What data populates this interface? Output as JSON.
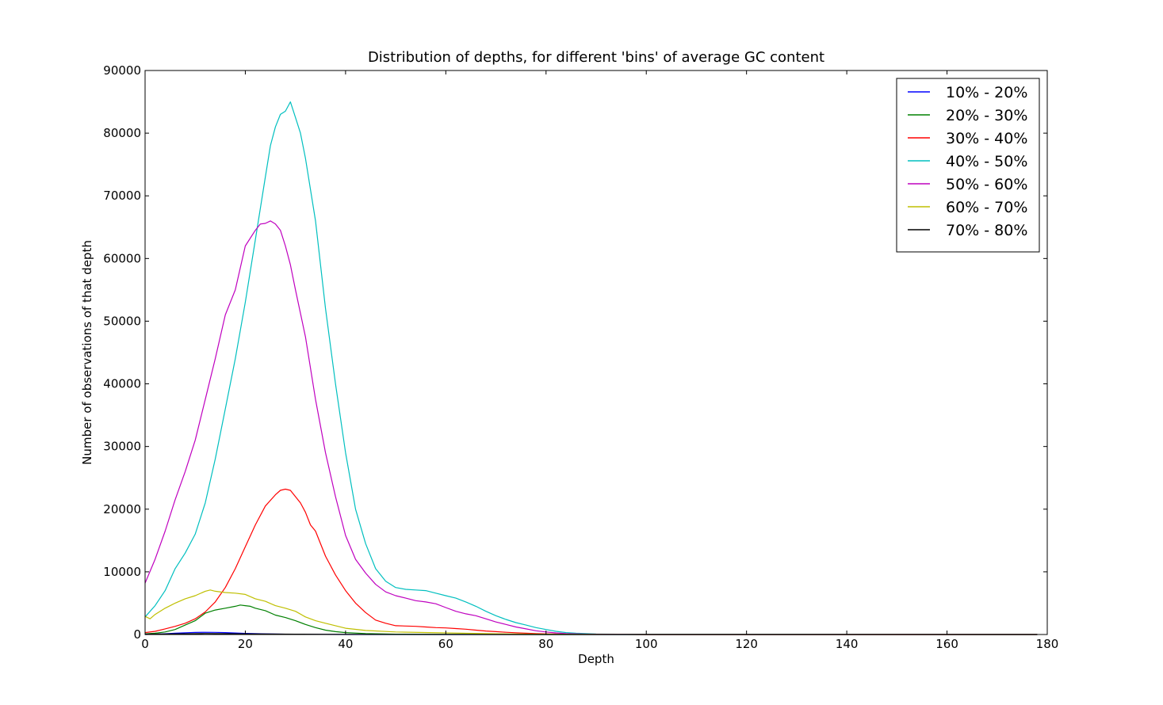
{
  "chart_data": {
    "type": "line",
    "title": "Distribution of depths, for different 'bins' of average GC content",
    "xlabel": "Depth",
    "ylabel": "Number of observations of that depth",
    "xlim": [
      0,
      180
    ],
    "ylim": [
      0,
      90000
    ],
    "xticks": [
      "0",
      "20",
      "40",
      "60",
      "80",
      "100",
      "120",
      "140",
      "160",
      "180"
    ],
    "yticks": [
      "0",
      "10000",
      "20000",
      "30000",
      "40000",
      "50000",
      "60000",
      "70000",
      "80000",
      "90000"
    ],
    "grid": false,
    "legend": "top-right",
    "series": [
      {
        "name": "10% - 20%",
        "color": "#0000ff",
        "x": [
          0,
          2,
          4,
          6,
          8,
          10,
          12,
          14,
          16,
          18,
          20,
          24,
          28,
          32,
          40,
          60,
          100,
          178
        ],
        "y": [
          0,
          50,
          120,
          200,
          280,
          330,
          360,
          340,
          300,
          240,
          180,
          100,
          50,
          20,
          0,
          0,
          0,
          0
        ]
      },
      {
        "name": "20% - 30%",
        "color": "#008000",
        "x": [
          0,
          2,
          4,
          6,
          8,
          10,
          12,
          14,
          16,
          18,
          19,
          20,
          21,
          22,
          24,
          26,
          28,
          30,
          32,
          34,
          36,
          38,
          40,
          44,
          50,
          60,
          80,
          100,
          178
        ],
        "y": [
          100,
          200,
          400,
          800,
          1500,
          2200,
          3400,
          3900,
          4200,
          4500,
          4700,
          4600,
          4500,
          4200,
          3800,
          3100,
          2700,
          2200,
          1600,
          1100,
          700,
          450,
          300,
          150,
          50,
          20,
          0,
          0,
          0
        ]
      },
      {
        "name": "30% - 40%",
        "color": "#ff0000",
        "x": [
          0,
          2,
          4,
          6,
          8,
          10,
          12,
          14,
          16,
          18,
          20,
          22,
          24,
          26,
          27,
          28,
          29,
          30,
          31,
          32,
          33,
          34,
          36,
          38,
          40,
          42,
          44,
          46,
          48,
          50,
          52,
          54,
          56,
          58,
          60,
          62,
          64,
          66,
          68,
          70,
          72,
          74,
          76,
          78,
          80,
          85,
          90,
          100,
          178
        ],
        "y": [
          300,
          500,
          900,
          1300,
          1800,
          2500,
          3600,
          5200,
          7500,
          10500,
          14000,
          17500,
          20500,
          22300,
          23000,
          23200,
          23000,
          22000,
          21000,
          19500,
          17500,
          16500,
          12500,
          9500,
          7000,
          5000,
          3500,
          2300,
          1800,
          1400,
          1350,
          1300,
          1200,
          1100,
          1050,
          950,
          850,
          700,
          550,
          450,
          350,
          280,
          200,
          150,
          100,
          50,
          20,
          0,
          0
        ]
      },
      {
        "name": "40% - 50%",
        "color": "#00bfbf",
        "x": [
          0,
          2,
          4,
          6,
          8,
          10,
          12,
          14,
          16,
          18,
          20,
          22,
          24,
          25,
          26,
          27,
          28,
          29,
          30,
          31,
          32,
          34,
          36,
          38,
          40,
          42,
          44,
          46,
          48,
          50,
          52,
          54,
          56,
          58,
          60,
          62,
          64,
          66,
          68,
          70,
          72,
          74,
          76,
          78,
          80,
          82,
          84,
          86,
          90,
          100,
          178
        ],
        "y": [
          2800,
          4600,
          7000,
          10500,
          13000,
          16000,
          21000,
          28000,
          36000,
          44000,
          53000,
          63000,
          73000,
          78000,
          81000,
          83000,
          83500,
          85000,
          82500,
          80000,
          76000,
          66000,
          52000,
          40000,
          29000,
          20000,
          14500,
          10500,
          8500,
          7500,
          7200,
          7100,
          7000,
          6600,
          6200,
          5800,
          5200,
          4500,
          3700,
          3000,
          2400,
          1900,
          1500,
          1100,
          800,
          500,
          300,
          200,
          80,
          20,
          0
        ]
      },
      {
        "name": "50% - 60%",
        "color": "#bf00bf",
        "x": [
          0,
          2,
          4,
          6,
          8,
          10,
          12,
          14,
          16,
          18,
          20,
          22,
          23,
          24,
          25,
          26,
          27,
          28,
          29,
          30,
          32,
          34,
          36,
          38,
          40,
          42,
          44,
          46,
          48,
          50,
          52,
          54,
          56,
          58,
          60,
          62,
          64,
          66,
          68,
          70,
          72,
          74,
          76,
          78,
          80,
          82,
          84,
          88,
          100,
          178
        ],
        "y": [
          8200,
          12000,
          16500,
          21500,
          26000,
          31000,
          37500,
          44000,
          51000,
          55000,
          62000,
          64500,
          65500,
          65600,
          66000,
          65500,
          64500,
          62000,
          59000,
          55000,
          47500,
          37500,
          29000,
          22000,
          15800,
          12000,
          9800,
          8000,
          6800,
          6200,
          5800,
          5400,
          5200,
          4900,
          4300,
          3700,
          3300,
          3000,
          2500,
          2000,
          1600,
          1200,
          900,
          600,
          400,
          250,
          150,
          60,
          0,
          0
        ]
      },
      {
        "name": "60% - 70%",
        "color": "#bfbf00",
        "x": [
          0,
          1,
          2,
          4,
          6,
          8,
          10,
          12,
          13,
          14,
          16,
          18,
          20,
          22,
          24,
          26,
          28,
          30,
          32,
          34,
          36,
          38,
          40,
          44,
          50,
          60,
          70,
          80,
          100,
          178
        ],
        "y": [
          2900,
          2500,
          3200,
          4200,
          5000,
          5700,
          6200,
          6900,
          7100,
          6900,
          6700,
          6600,
          6400,
          5700,
          5300,
          4600,
          4200,
          3700,
          2800,
          2200,
          1800,
          1400,
          1000,
          650,
          400,
          250,
          120,
          50,
          0,
          0
        ]
      },
      {
        "name": "70% - 80%",
        "color": "#000000",
        "x": [
          0,
          4,
          8,
          12,
          16,
          20,
          30,
          40,
          60,
          100,
          178
        ],
        "y": [
          50,
          80,
          120,
          150,
          130,
          100,
          50,
          20,
          0,
          0,
          0
        ]
      }
    ]
  }
}
